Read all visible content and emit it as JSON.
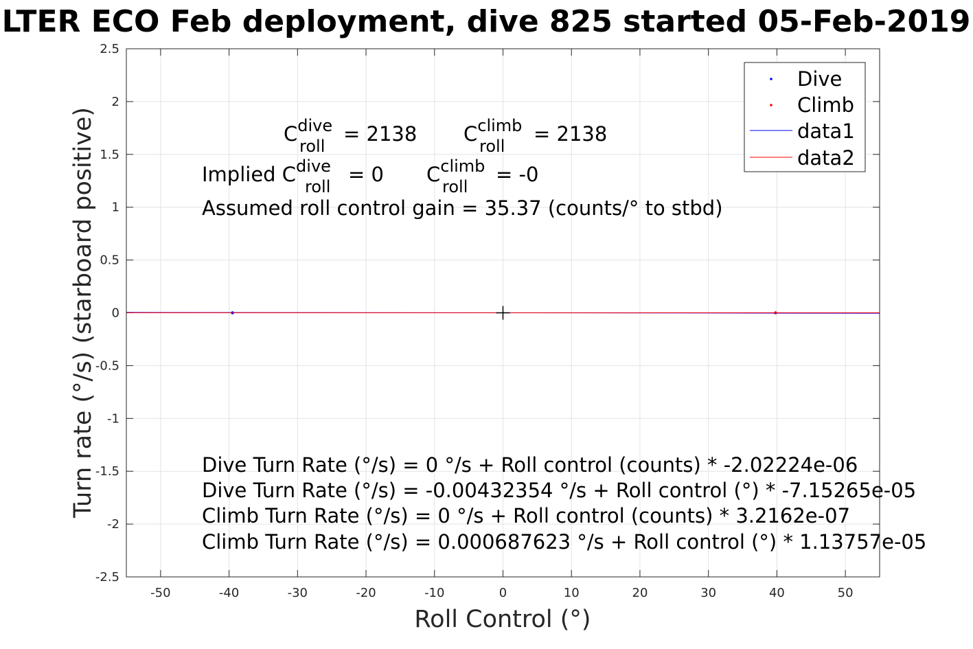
{
  "chart_data": {
    "type": "scatter",
    "title": "LTER ECO Feb deployment, dive 825 started 05-Feb-2019",
    "xlabel": "Roll Control (°)",
    "ylabel": "Turn rate (°/s) (starboard positive)",
    "xlim": [
      -55,
      55
    ],
    "ylim": [
      -2.5,
      2.5
    ],
    "xticks": [
      -50,
      -40,
      -30,
      -20,
      -10,
      0,
      10,
      20,
      30,
      40,
      50
    ],
    "yticks": [
      -2.5,
      -2,
      -1.5,
      -1,
      -0.5,
      0,
      0.5,
      1,
      1.5,
      2,
      2.5
    ],
    "xtick_labels": [
      "-50",
      "-40",
      "-30",
      "-20",
      "-10",
      "0",
      "10",
      "20",
      "30",
      "40",
      "50"
    ],
    "ytick_labels": [
      "-2.5",
      "-2",
      "-1.5",
      "-1",
      "-0.5",
      "0",
      "0.5",
      "1",
      "1.5",
      "2",
      "2.5"
    ],
    "grid": true,
    "legend_position": "top-right",
    "center_marker": {
      "x": 0,
      "y": 0
    },
    "series": [
      {
        "name": "Dive",
        "kind": "points",
        "color": "#0000ff",
        "x": [
          -39.5
        ],
        "y": [
          0
        ]
      },
      {
        "name": "Climb",
        "kind": "points",
        "color": "#ff0000",
        "x": [
          39.8
        ],
        "y": [
          0
        ]
      },
      {
        "name": "data1",
        "kind": "line",
        "color": "#0000ff",
        "x": [
          -55,
          55
        ],
        "y": [
          0.0039,
          -0.0039
        ]
      },
      {
        "name": "data2",
        "kind": "line",
        "color": "#ff0000",
        "x": [
          -55,
          55
        ],
        "y": [
          0.0007,
          0.0007
        ]
      }
    ],
    "annotations": {
      "c_roll": {
        "dive_base": "C",
        "dive_sup": "dive",
        "dive_sub": "roll",
        "dive_value": "= 2138",
        "climb_base": "C",
        "climb_sup": "climb",
        "climb_sub": "roll",
        "climb_value": "= 2138"
      },
      "implied": {
        "prefix": "Implied C",
        "dive_sup": "dive",
        "dive_sub": "roll",
        "dive_value": "= 0",
        "climb_base": "C",
        "climb_sup": "climb",
        "climb_sub": "roll",
        "climb_value": "= -0"
      },
      "gain": "Assumed roll control gain = 35.37 (counts/° to stbd)",
      "equations": [
        "Dive Turn Rate (°/s) = 0 °/s + Roll control (counts) * -2.02224e-06",
        "Dive Turn Rate (°/s) = -0.00432354 °/s + Roll control (°) * -7.15265e-05",
        "Climb Turn Rate (°/s) = 0 °/s + Roll control (counts) * 3.2162e-07",
        "Climb Turn Rate (°/s) = 0.000687623 °/s + Roll control (°) * 1.13757e-05"
      ]
    }
  }
}
